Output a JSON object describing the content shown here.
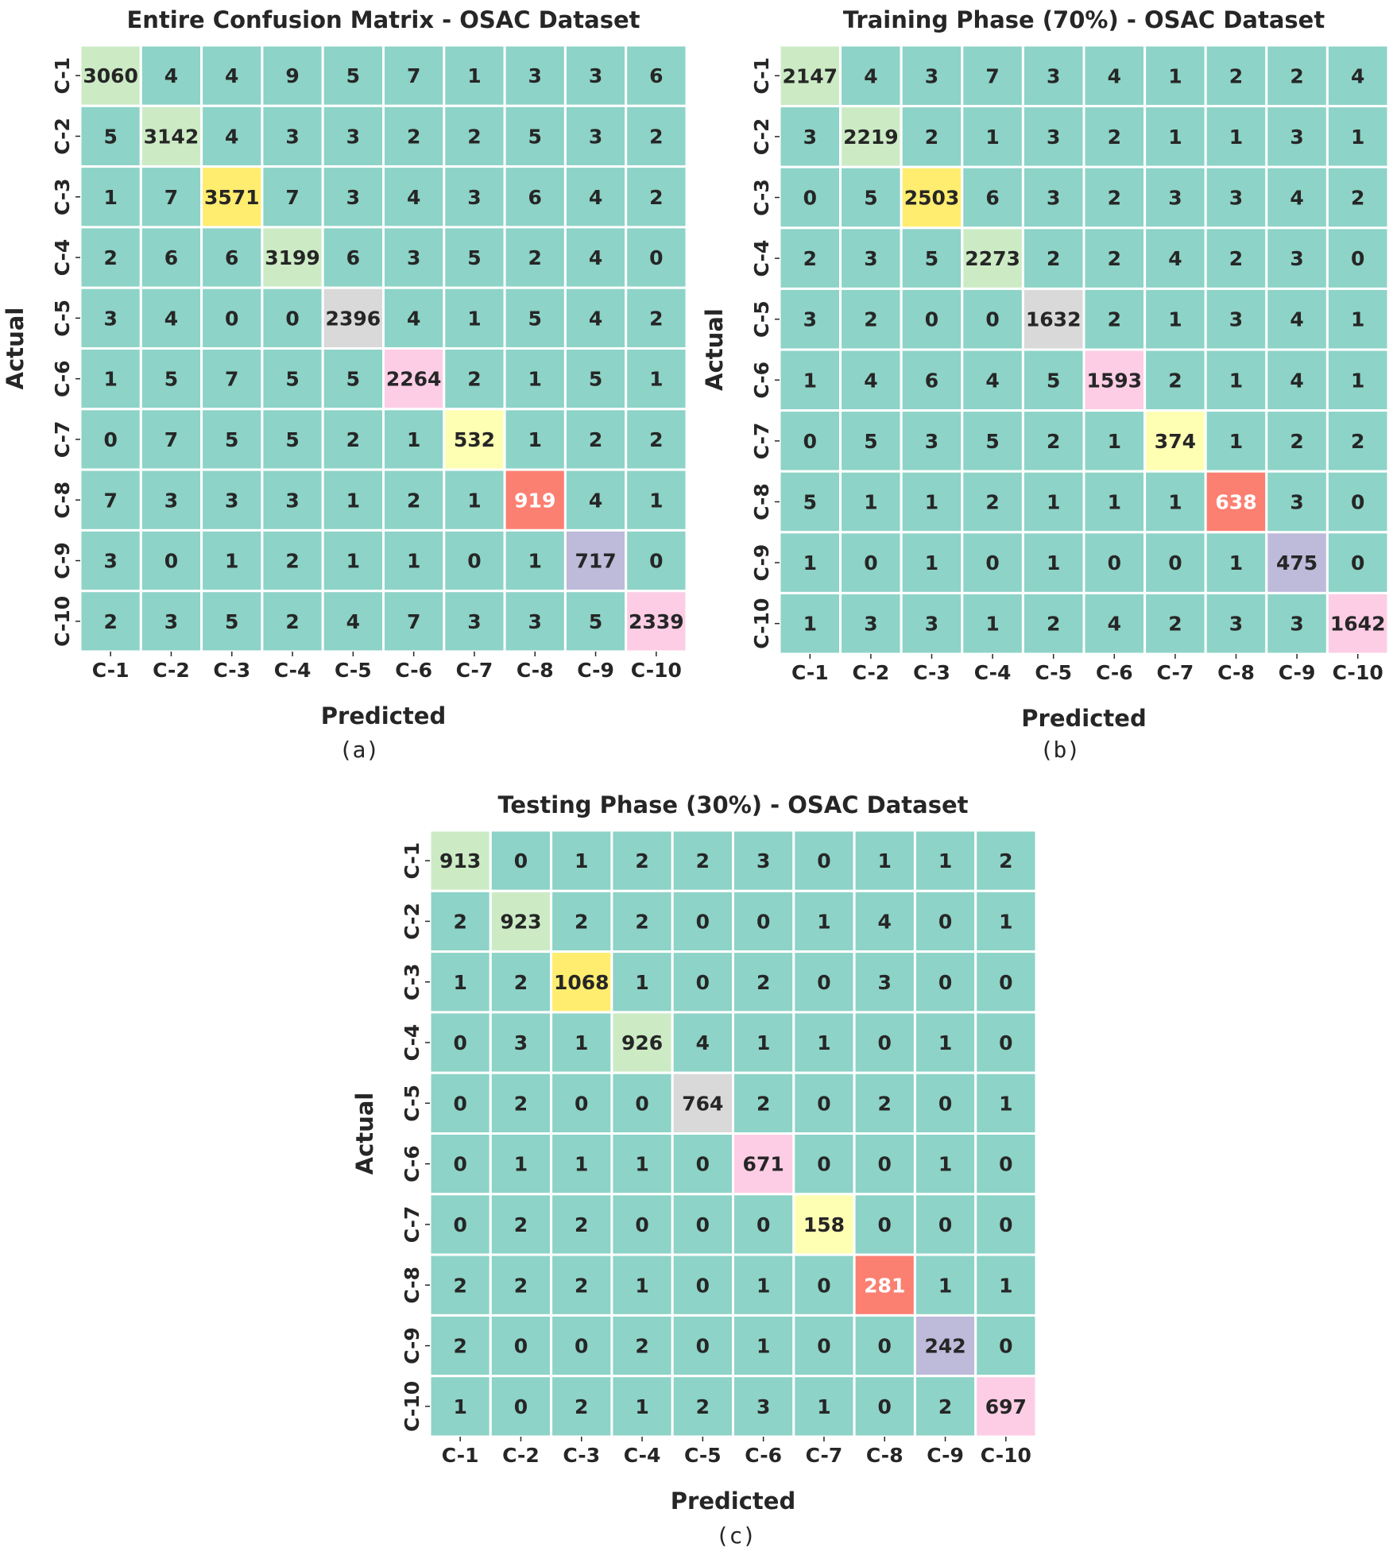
{
  "chart_data": [
    {
      "type": "heatmap",
      "title": "Entire Confusion Matrix - OSAC Dataset",
      "caption": "(a)",
      "xlabel": "Predicted",
      "ylabel": "Actual",
      "x_categories": [
        "C-1",
        "C-2",
        "C-3",
        "C-4",
        "C-5",
        "C-6",
        "C-7",
        "C-8",
        "C-9",
        "C-10"
      ],
      "y_categories": [
        "C-1",
        "C-2",
        "C-3",
        "C-4",
        "C-5",
        "C-6",
        "C-7",
        "C-8",
        "C-9",
        "C-10"
      ],
      "values": [
        [
          3060,
          4,
          4,
          9,
          5,
          7,
          1,
          3,
          3,
          6
        ],
        [
          5,
          3142,
          4,
          3,
          3,
          2,
          2,
          5,
          3,
          2
        ],
        [
          1,
          7,
          3571,
          7,
          3,
          4,
          3,
          6,
          4,
          2
        ],
        [
          2,
          6,
          6,
          3199,
          6,
          3,
          5,
          2,
          4,
          0
        ],
        [
          3,
          4,
          0,
          0,
          2396,
          4,
          1,
          5,
          4,
          2
        ],
        [
          1,
          5,
          7,
          5,
          5,
          2264,
          2,
          1,
          5,
          1
        ],
        [
          0,
          7,
          5,
          5,
          2,
          1,
          532,
          1,
          2,
          2
        ],
        [
          7,
          3,
          3,
          3,
          1,
          2,
          1,
          919,
          4,
          1
        ],
        [
          3,
          0,
          1,
          2,
          1,
          1,
          0,
          1,
          717,
          0
        ],
        [
          2,
          3,
          5,
          2,
          4,
          7,
          3,
          3,
          5,
          2339
        ]
      ]
    },
    {
      "type": "heatmap",
      "title": "Training Phase (70%) - OSAC Dataset",
      "caption": "(b)",
      "xlabel": "Predicted",
      "ylabel": "Actual",
      "x_categories": [
        "C-1",
        "C-2",
        "C-3",
        "C-4",
        "C-5",
        "C-6",
        "C-7",
        "C-8",
        "C-9",
        "C-10"
      ],
      "y_categories": [
        "C-1",
        "C-2",
        "C-3",
        "C-4",
        "C-5",
        "C-6",
        "C-7",
        "C-8",
        "C-9",
        "C-10"
      ],
      "values": [
        [
          2147,
          4,
          3,
          7,
          3,
          4,
          1,
          2,
          2,
          4
        ],
        [
          3,
          2219,
          2,
          1,
          3,
          2,
          1,
          1,
          3,
          1
        ],
        [
          0,
          5,
          2503,
          6,
          3,
          2,
          3,
          3,
          4,
          2
        ],
        [
          2,
          3,
          5,
          2273,
          2,
          2,
          4,
          2,
          3,
          0
        ],
        [
          3,
          2,
          0,
          0,
          1632,
          2,
          1,
          3,
          4,
          1
        ],
        [
          1,
          4,
          6,
          4,
          5,
          1593,
          2,
          1,
          4,
          1
        ],
        [
          0,
          5,
          3,
          5,
          2,
          1,
          374,
          1,
          2,
          2
        ],
        [
          5,
          1,
          1,
          2,
          1,
          1,
          1,
          638,
          3,
          0
        ],
        [
          1,
          0,
          1,
          0,
          1,
          0,
          0,
          1,
          475,
          0
        ],
        [
          1,
          3,
          3,
          1,
          2,
          4,
          2,
          3,
          3,
          1642
        ]
      ]
    },
    {
      "type": "heatmap",
      "title": "Testing Phase (30%) - OSAC Dataset",
      "caption": "(c)",
      "xlabel": "Predicted",
      "ylabel": "Actual",
      "x_categories": [
        "C-1",
        "C-2",
        "C-3",
        "C-4",
        "C-5",
        "C-6",
        "C-7",
        "C-8",
        "C-9",
        "C-10"
      ],
      "y_categories": [
        "C-1",
        "C-2",
        "C-3",
        "C-4",
        "C-5",
        "C-6",
        "C-7",
        "C-8",
        "C-9",
        "C-10"
      ],
      "values": [
        [
          913,
          0,
          1,
          2,
          2,
          3,
          0,
          1,
          1,
          2
        ],
        [
          2,
          923,
          2,
          2,
          0,
          0,
          1,
          4,
          0,
          1
        ],
        [
          1,
          2,
          1068,
          1,
          0,
          2,
          0,
          3,
          0,
          0
        ],
        [
          0,
          3,
          1,
          926,
          4,
          1,
          1,
          0,
          1,
          0
        ],
        [
          0,
          2,
          0,
          0,
          764,
          2,
          0,
          2,
          0,
          1
        ],
        [
          0,
          1,
          1,
          1,
          0,
          671,
          0,
          0,
          1,
          0
        ],
        [
          0,
          2,
          2,
          0,
          0,
          0,
          158,
          0,
          0,
          0
        ],
        [
          2,
          2,
          2,
          1,
          0,
          1,
          0,
          281,
          1,
          1
        ],
        [
          2,
          0,
          0,
          2,
          0,
          1,
          0,
          0,
          242,
          0
        ],
        [
          1,
          0,
          2,
          1,
          2,
          3,
          1,
          0,
          2,
          697
        ]
      ]
    }
  ],
  "colors": {
    "off_diagonal": "#8dd3c7",
    "diagonal": [
      "#ccebc5",
      "#ccebc5",
      "#ffed6f",
      "#ccebc5",
      "#d9d9d9",
      "#fccde5",
      "#ffffb3",
      "#fb8072",
      "#bebada",
      "#fccde5"
    ],
    "diagonal_text_light": "#ffffff",
    "text": "#262626",
    "grid": "#ffffff",
    "background": "#ffffff"
  }
}
